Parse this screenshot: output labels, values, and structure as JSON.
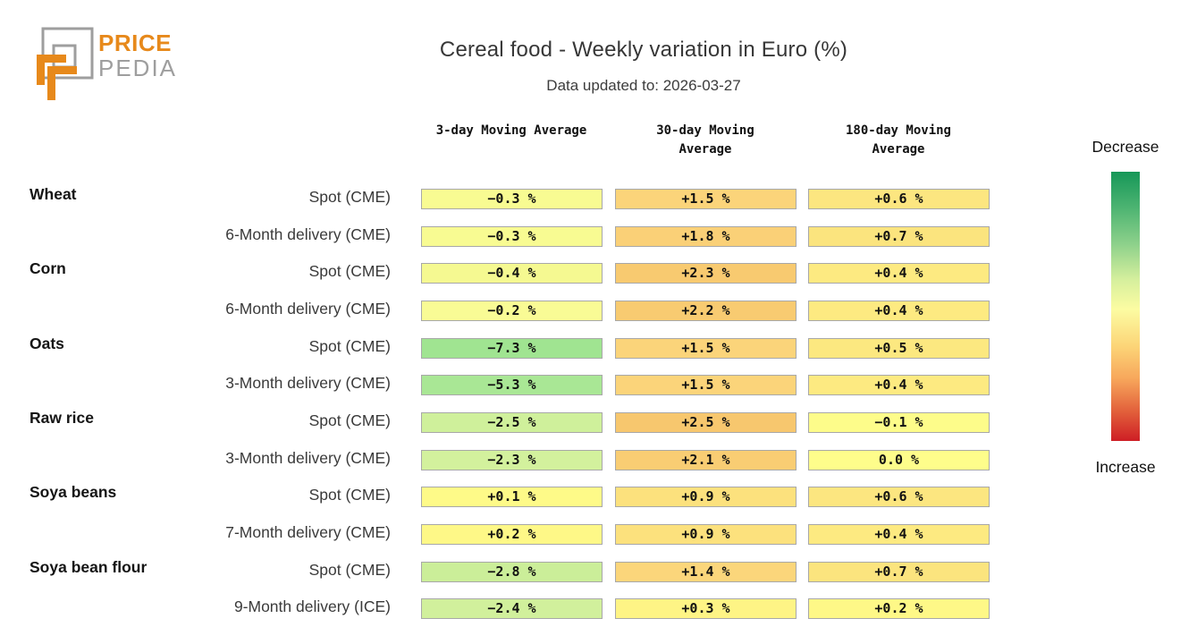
{
  "logo": {
    "line1": "PRICE",
    "line2": "PEDIA",
    "orange": "#E7891B",
    "gray": "#9E9E9E"
  },
  "title": "Cereal food - Weekly variation in Euro (%)",
  "subtitle": "Data updated to: 2026-03-27",
  "chart_data": {
    "type": "heatmap",
    "title": "Cereal food - Weekly variation in Euro (%)",
    "subtitle": "Data updated to: 2026-03-27",
    "columns": [
      "3-day Moving Average",
      "30-day Moving Average",
      "180-day Moving Average"
    ],
    "rows": [
      {
        "group": "Wheat",
        "label": "Spot (CME)",
        "values": [
          -0.3,
          1.5,
          0.6
        ],
        "display": [
          "−0.3 %",
          "+1.5 %",
          "+0.6 %"
        ],
        "colors": [
          "#F8FB92",
          "#FBD47A",
          "#FCE680"
        ]
      },
      {
        "group": "",
        "label": "6-Month delivery (CME)",
        "values": [
          -0.3,
          1.8,
          0.7
        ],
        "display": [
          "−0.3 %",
          "+1.8 %",
          "+0.7 %"
        ],
        "colors": [
          "#F8FB92",
          "#FAD077",
          "#FBE47E"
        ]
      },
      {
        "group": "Corn",
        "label": "Spot (CME)",
        "values": [
          -0.4,
          2.3,
          0.4
        ],
        "display": [
          "−0.4 %",
          "+2.3 %",
          "+0.4 %"
        ],
        "colors": [
          "#F5F991",
          "#F8CA70",
          "#FDEA81"
        ]
      },
      {
        "group": "",
        "label": "6-Month delivery (CME)",
        "values": [
          -0.2,
          2.2,
          0.4
        ],
        "display": [
          "−0.2 %",
          "+2.2 %",
          "+0.4 %"
        ],
        "colors": [
          "#F9FB95",
          "#F8CB71",
          "#FDEA81"
        ]
      },
      {
        "group": "Oats",
        "label": "Spot (CME)",
        "values": [
          -7.3,
          1.5,
          0.5
        ],
        "display": [
          "−7.3 %",
          "+1.5 %",
          "+0.5 %"
        ],
        "colors": [
          "#A0E491",
          "#FBD47A",
          "#FCE880"
        ]
      },
      {
        "group": "",
        "label": "3-Month delivery (CME)",
        "values": [
          -5.3,
          1.5,
          0.4
        ],
        "display": [
          "−5.3 %",
          "+1.5 %",
          "+0.4 %"
        ],
        "colors": [
          "#A9E795",
          "#FBD47A",
          "#FDEA81"
        ]
      },
      {
        "group": "Raw rice",
        "label": "Spot (CME)",
        "values": [
          -2.5,
          2.5,
          -0.1
        ],
        "display": [
          "−2.5 %",
          "+2.5 %",
          "−0.1 %"
        ],
        "colors": [
          "#CFF09B",
          "#F7C76E",
          "#FDFC8A"
        ]
      },
      {
        "group": "",
        "label": "3-Month delivery (CME)",
        "values": [
          -2.3,
          2.1,
          0.0
        ],
        "display": [
          "−2.3 %",
          "+2.1 %",
          "0.0 %"
        ],
        "colors": [
          "#D3F19D",
          "#F9CD73",
          "#FEFD8B"
        ]
      },
      {
        "group": "Soya beans",
        "label": "Spot (CME)",
        "values": [
          0.1,
          0.9,
          0.6
        ],
        "display": [
          "+0.1 %",
          "+0.9 %",
          "+0.6 %"
        ],
        "colors": [
          "#FEFA88",
          "#FCE17D",
          "#FCE680"
        ]
      },
      {
        "group": "",
        "label": "7-Month delivery (CME)",
        "values": [
          0.2,
          0.9,
          0.4
        ],
        "display": [
          "+0.2 %",
          "+0.9 %",
          "+0.4 %"
        ],
        "colors": [
          "#FEF887",
          "#FCE17D",
          "#FDEA81"
        ]
      },
      {
        "group": "Soya bean flour",
        "label": "Spot (CME)",
        "values": [
          -2.8,
          1.4,
          0.7
        ],
        "display": [
          "−2.8 %",
          "+1.4 %",
          "+0.7 %"
        ],
        "colors": [
          "#CBEE99",
          "#FBD67B",
          "#FBE47E"
        ]
      },
      {
        "group": "",
        "label": "9-Month delivery (ICE)",
        "values": [
          -2.4,
          0.3,
          0.2
        ],
        "display": [
          "−2.4 %",
          "+0.3 %",
          "+0.2 %"
        ],
        "colors": [
          "#D1F09C",
          "#FEF485",
          "#FEF887"
        ]
      }
    ],
    "legend": {
      "decrease_label": "Decrease",
      "increase_label": "Increase",
      "gradient": [
        {
          "color": "#169758",
          "pos": 0
        },
        {
          "color": "#4BB371",
          "pos": 13
        },
        {
          "color": "#8ED18B",
          "pos": 27
        },
        {
          "color": "#D5EF9D",
          "pos": 40
        },
        {
          "color": "#FCFCA2",
          "pos": 51
        },
        {
          "color": "#FCD477",
          "pos": 65
        },
        {
          "color": "#F7A65B",
          "pos": 77
        },
        {
          "color": "#E2603B",
          "pos": 89
        },
        {
          "color": "#CE1E25",
          "pos": 100
        }
      ]
    }
  }
}
